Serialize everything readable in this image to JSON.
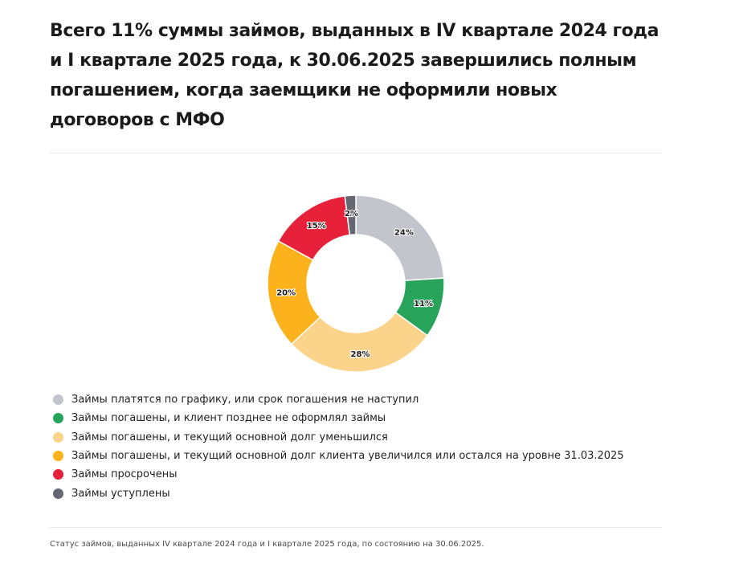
{
  "header": {
    "title": "Всего 11% суммы займов, выданных в IV квартале 2024 года и I квартале 2025 года, к 30.06.2025 завершились полным погашением, когда заемщики не оформили новых договоров с МФО"
  },
  "chart_data": {
    "type": "pie",
    "subtype": "donut",
    "categories": [
      "Займы платятся по графику, или срок погашения не наступил",
      "Займы погашены, и клиент позднее не оформлял займы",
      "Займы погашены, и текущий основной долг уменьшился",
      "Займы погашены, и текущий основной долг клиента увеличился или остался на уровне 31.03.2025",
      "Займы просрочены",
      "Займы уступлены"
    ],
    "values": [
      24,
      11,
      28,
      20,
      15,
      2
    ],
    "labels": [
      "24%",
      "11%",
      "28%",
      "20%",
      "15%",
      "2%"
    ],
    "colors": [
      "#c3c5cd",
      "#27a35a",
      "#fcd38a",
      "#fcb21c",
      "#e8213a",
      "#666871"
    ],
    "legend_position": "bottom",
    "unit": "%"
  },
  "footer": {
    "caption": "Статус займов, выданных IV квартале 2024 года и I квартале 2025 года, по состоянию на 30.06.2025."
  }
}
